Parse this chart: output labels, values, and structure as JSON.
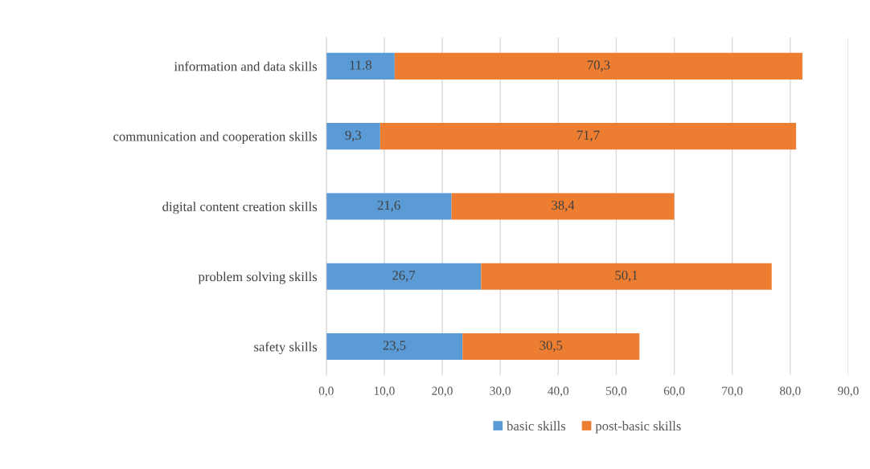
{
  "chart_data": {
    "type": "bar",
    "orientation": "horizontal",
    "stacked": true,
    "categories": [
      "information and data skills",
      "communication and cooperation skills",
      "digital content creation skills",
      "problem solving skills",
      "safety skills"
    ],
    "series": [
      {
        "name": "basic skills",
        "color": "#5b9bd5",
        "values": [
          11.8,
          9.3,
          21.6,
          26.7,
          23.5
        ],
        "value_labels": [
          "11.8",
          "9,3",
          "21,6",
          "26,7",
          "23,5"
        ]
      },
      {
        "name": "post-basic skills",
        "color": "#ed7d31",
        "values": [
          70.3,
          71.7,
          38.4,
          50.1,
          30.5
        ],
        "value_labels": [
          "70,3",
          "71,7",
          "38,4",
          "50,1",
          "30,5"
        ]
      }
    ],
    "xlim": [
      0,
      90
    ],
    "xticks": [
      {
        "value": 0,
        "label": "0,0"
      },
      {
        "value": 10,
        "label": "10,0"
      },
      {
        "value": 20,
        "label": "20,0"
      },
      {
        "value": 30,
        "label": "30,0"
      },
      {
        "value": 40,
        "label": "40,0"
      },
      {
        "value": 50,
        "label": "50,0"
      },
      {
        "value": 60,
        "label": "60,0"
      },
      {
        "value": 70,
        "label": "70,0"
      },
      {
        "value": 80,
        "label": "80,0"
      },
      {
        "value": 90,
        "label": "90,0"
      }
    ],
    "grid": "x",
    "legend": "bottom"
  }
}
